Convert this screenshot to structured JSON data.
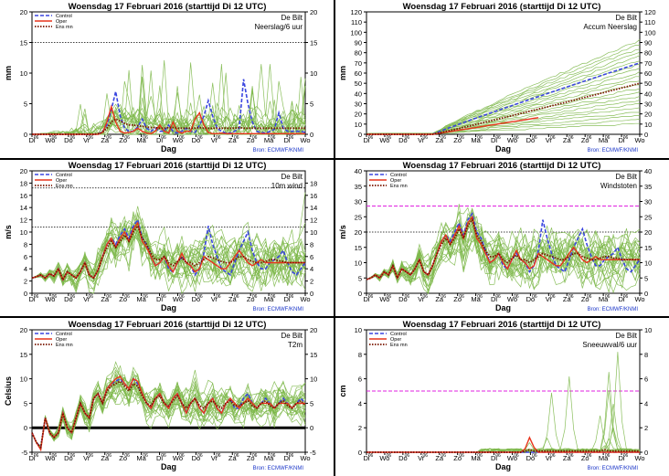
{
  "header": {
    "title": "Woensdag  17 Februari  2016  (starttijd  Di 12 UTC)",
    "location": "De Bilt",
    "source": "Bron: ECMWF/KNMI",
    "xlabel": "Dag"
  },
  "legend": [
    "Control",
    "Oper",
    "Ens mn"
  ],
  "colors": {
    "control": "#3b46e0",
    "oper": "#e8341c",
    "ensmean": "#7a1400",
    "members": "#7db84a",
    "threshold_dotted": "#000000",
    "threshold_magenta": "#e020e0",
    "source_text": "#1a35c8"
  },
  "days": [
    "Di",
    "Wo",
    "Do",
    "Vr",
    "Za",
    "Zo",
    "Ma",
    "Di",
    "Wo",
    "Do",
    "Vr",
    "Za",
    "Zo",
    "Ma",
    "Di",
    "Wo"
  ],
  "hour_mark": "06",
  "chart_data": [
    {
      "id": "neerslag",
      "type": "line",
      "subtitle": "Neerslag/6 uur",
      "ylabel": "mm",
      "ylim": [
        0,
        20
      ],
      "yticks": [
        0,
        5,
        10,
        15,
        20
      ],
      "show_legend": true,
      "thresholds": [
        {
          "y": 15,
          "style": "dotted"
        }
      ],
      "control": [
        0,
        0,
        0,
        0,
        0,
        0,
        0,
        0,
        0,
        0,
        0,
        0,
        0,
        0,
        0,
        0,
        0.5,
        1.5,
        4,
        7,
        3,
        1,
        0.5,
        0.5,
        1.2,
        2.5,
        1,
        0.5,
        1,
        0.5,
        0.5,
        1.5,
        0.5,
        0.2,
        0.5,
        1,
        0.5,
        0.3,
        1.5,
        3,
        5.5,
        3,
        1,
        0.5,
        0.2,
        0.2,
        0.5,
        1,
        9,
        5,
        2,
        0.5,
        0.3,
        0.2,
        0.5,
        0.8,
        3.5,
        1,
        0.5,
        0.5,
        0.5,
        0.5,
        0.3
      ],
      "oper": [
        0,
        0,
        0,
        0,
        0,
        0,
        0,
        0,
        0,
        0,
        0,
        0,
        0,
        0,
        0,
        0,
        0.3,
        2,
        4.5,
        2,
        0.5,
        0.2,
        0.3,
        0.5,
        1,
        0.5,
        0.2,
        0.1,
        0.5,
        1.5,
        0.5,
        0.2,
        2,
        0.5,
        0.2,
        0.5,
        0.5,
        2.5,
        3.5,
        1.5,
        0.3,
        0.1,
        0.1,
        0.2,
        0.1,
        0.1,
        0.1,
        0.1,
        0.1,
        0.1,
        0.1,
        0.1,
        0.1,
        0.1,
        0.1,
        0.1,
        0.1,
        0.1,
        0.1,
        0.1,
        0.1,
        0.1,
        0.1
      ],
      "ensmean": [
        0,
        0,
        0,
        0,
        0,
        0,
        0,
        0,
        0,
        0,
        0,
        0,
        0,
        0,
        0,
        0.1,
        0.3,
        1,
        2,
        2.5,
        2.2,
        1.8,
        1.5,
        1.5,
        1.4,
        1.3,
        1.2,
        1.1,
        1.1,
        1,
        1,
        1.1,
        1.1,
        1,
        1,
        1,
        1,
        1,
        1.1,
        1,
        1,
        1,
        1,
        1,
        1,
        1,
        1,
        1.1,
        1,
        1,
        1,
        1,
        1,
        1,
        1,
        1,
        1,
        1,
        1,
        1,
        1,
        1,
        1
      ],
      "members_source": {
        "mean": "ensmean",
        "mode": "noise",
        "spread": 2.2,
        "min": 0,
        "amp_min": 0,
        "amp_max": 12,
        "count": 18
      }
    },
    {
      "id": "accum",
      "type": "line",
      "subtitle": "Accum Neerslag",
      "ylabel": "mm",
      "ylim": [
        0,
        120
      ],
      "yticks": [
        0,
        10,
        20,
        30,
        40,
        50,
        60,
        70,
        80,
        90,
        100,
        110,
        120
      ],
      "show_legend": false,
      "thresholds": [],
      "control_end": 70,
      "oper_end": 32,
      "ensmean_end": 50,
      "members_source": {
        "mode": "accum",
        "min_end": 10,
        "max_end": 92,
        "count": 22
      }
    },
    {
      "id": "wind",
      "type": "line",
      "subtitle": "10m wind",
      "ylabel": "m/s",
      "ylim": [
        0,
        20
      ],
      "yticks_left": [
        0,
        2,
        4,
        6,
        8,
        10,
        12,
        14,
        16,
        18,
        20
      ],
      "yticks_right": [
        0,
        2,
        4,
        6,
        8,
        10,
        12,
        14,
        16,
        18
      ],
      "show_legend": true,
      "thresholds": [
        {
          "y": 10.8,
          "style": "dotted"
        },
        {
          "y": 17.2,
          "style": "dotted"
        }
      ],
      "control": [
        2.5,
        2.7,
        3,
        2.5,
        3.2,
        2.8,
        4,
        2.2,
        3.5,
        3,
        2.5,
        3.5,
        5,
        3,
        2.5,
        3.8,
        6,
        8,
        9,
        8,
        9.5,
        10.5,
        9,
        11,
        12,
        9,
        8,
        6,
        4.5,
        5,
        6,
        4,
        3.5,
        5,
        6,
        5,
        4.5,
        3,
        4,
        6.5,
        11,
        8,
        6,
        4,
        3.5,
        3,
        5,
        7,
        8.5,
        10,
        7,
        5,
        4,
        4,
        5,
        5.5,
        6,
        7,
        5,
        3.5,
        3,
        4,
        5
      ],
      "oper": [
        2.5,
        2.7,
        3,
        2.5,
        3.2,
        2.8,
        4,
        2.2,
        3.5,
        3,
        2.5,
        3.5,
        5,
        3,
        2.5,
        3.8,
        6,
        8,
        9,
        7.5,
        9,
        10,
        8.5,
        10.5,
        11.5,
        8.5,
        7.5,
        6,
        4.5,
        5,
        6,
        4.5,
        3.5,
        5,
        6.5,
        5,
        4.5,
        3.5,
        4,
        6,
        5.5,
        5,
        4.5,
        4,
        4,
        5,
        6,
        7,
        6,
        5,
        4.5,
        5,
        5.5,
        5,
        5,
        5,
        5,
        5,
        5,
        5,
        5,
        5,
        5
      ],
      "ensmean": [
        2.5,
        2.7,
        3,
        2.5,
        3.2,
        2.8,
        4,
        2.2,
        3.5,
        3,
        2.5,
        3.5,
        5,
        3,
        2.5,
        3.8,
        6,
        7.5,
        8.5,
        7.5,
        8.5,
        9.5,
        8.5,
        10,
        11,
        9,
        8,
        6.5,
        5.5,
        5.5,
        6,
        5,
        4.5,
        5.2,
        5.8,
        5,
        5,
        4.5,
        5,
        5.5,
        6,
        5.8,
        5.5,
        5.2,
        5,
        5,
        5.5,
        6,
        6,
        5.5,
        5.2,
        5,
        5,
        5.2,
        5.5,
        5.5,
        5.3,
        5.2,
        5,
        5,
        5,
        5,
        5
      ],
      "members_source": {
        "mean": "ensmean",
        "mode": "noise",
        "spread": 3.2,
        "min": 0,
        "count": 22,
        "tail_max": 16.5
      }
    },
    {
      "id": "windstoten",
      "type": "line",
      "subtitle": "Windstoten",
      "ylabel": "m/s",
      "ylim": [
        0,
        40
      ],
      "yticks": [
        0,
        5,
        10,
        15,
        20,
        25,
        30,
        35,
        40
      ],
      "show_legend": true,
      "thresholds": [
        {
          "y": 20,
          "style": "dotted"
        },
        {
          "y": 28.5,
          "style": "magenta"
        }
      ],
      "control": [
        4.5,
        5,
        6,
        5,
        7,
        6,
        9,
        5,
        8,
        7,
        6,
        8,
        11,
        7,
        6,
        9,
        13,
        17,
        19,
        17,
        20,
        23,
        19,
        24,
        26,
        20,
        18,
        14,
        10,
        11,
        13,
        9,
        8,
        11,
        13,
        11,
        10,
        7,
        9,
        14,
        24,
        18,
        13,
        9,
        8,
        7,
        11,
        15,
        18,
        21,
        16,
        12,
        9,
        9,
        11,
        12,
        13,
        15,
        11,
        8,
        7,
        9,
        11
      ],
      "oper": [
        4.5,
        5,
        6,
        5,
        7,
        6,
        9,
        5,
        8,
        7,
        6,
        8,
        11,
        7,
        6,
        9,
        13,
        17,
        19,
        16,
        19,
        22,
        18,
        23,
        25,
        18,
        16,
        13,
        10,
        11,
        13,
        10,
        8,
        11,
        14,
        11,
        10,
        8,
        9,
        13,
        12,
        11,
        10,
        9,
        9,
        11,
        13,
        15,
        13,
        11,
        10,
        11,
        12,
        11,
        11,
        11,
        11,
        11,
        11,
        11,
        11,
        11,
        11
      ],
      "ensmean": [
        4.5,
        5,
        6,
        5,
        7,
        6,
        9,
        5,
        8,
        7,
        6,
        8,
        11,
        7,
        6,
        9,
        13,
        16,
        18,
        16,
        18,
        21,
        18,
        22,
        24,
        19,
        17,
        14,
        12,
        12,
        13,
        11,
        10,
        11.5,
        12.5,
        11,
        11,
        10,
        11,
        12,
        13,
        12.5,
        12,
        11.5,
        11,
        11,
        12,
        13,
        13,
        12,
        11.5,
        11,
        11,
        11.5,
        12,
        12,
        11.5,
        11.5,
        11,
        11,
        11,
        11,
        11
      ],
      "members_source": {
        "mean": "ensmean",
        "mode": "noise",
        "spread": 6.5,
        "min": 0,
        "count": 22
      }
    },
    {
      "id": "t2m",
      "type": "line",
      "subtitle": "T2m",
      "ylabel": "Celsius",
      "ylim": [
        -5,
        20
      ],
      "yticks_left": [
        -5,
        0,
        5,
        10,
        15,
        20
      ],
      "yticks_right": [
        -5,
        0,
        5,
        10,
        15,
        20
      ],
      "show_legend": true,
      "thresholds": [
        {
          "y": 0,
          "style": "solid-bold"
        }
      ],
      "control": [
        -1,
        -3,
        -4,
        2,
        -1,
        -2,
        -1,
        3,
        0,
        -1,
        2,
        5,
        3,
        2,
        6,
        7,
        5,
        8,
        9,
        9.5,
        10,
        9,
        8,
        10,
        9,
        7,
        5,
        4,
        6,
        7,
        5,
        4,
        6,
        7,
        5,
        3,
        5,
        6,
        4,
        3,
        5,
        6,
        4,
        3,
        5,
        6,
        4,
        4,
        6,
        7,
        5,
        4,
        5,
        6,
        5,
        4,
        5,
        6,
        5,
        4,
        5,
        6,
        5
      ],
      "oper": [
        -1,
        -3,
        -4.5,
        2,
        -1,
        -2,
        -1,
        3,
        0,
        -1,
        2,
        5,
        3,
        2,
        6,
        7,
        5,
        8,
        9,
        10,
        10.5,
        9,
        8,
        10,
        9.5,
        7,
        5,
        4,
        6,
        7,
        5,
        4,
        6,
        7,
        5,
        3,
        5,
        6,
        4,
        3,
        5,
        6,
        4,
        3,
        5,
        6,
        5,
        4,
        5,
        6,
        5,
        4,
        5,
        5,
        5,
        4,
        5,
        5,
        5,
        4,
        5,
        5,
        5
      ],
      "ensmean": [
        -1,
        -3,
        -4,
        2,
        -1,
        -2,
        -1,
        3,
        0,
        -1,
        2,
        5,
        3,
        2,
        6,
        7,
        5,
        7.5,
        8.5,
        9,
        9.5,
        8.5,
        7.5,
        9,
        8.5,
        6.5,
        5,
        4.5,
        6,
        6.5,
        5,
        4.5,
        5.5,
        6.5,
        5,
        4,
        5,
        6,
        4.5,
        4,
        5,
        5.5,
        4.5,
        4,
        5,
        5.5,
        4.5,
        4.5,
        5,
        5.5,
        4.5,
        4,
        5,
        5.5,
        4.5,
        4,
        5,
        5.5,
        4.5,
        4,
        5,
        5.5,
        4.5
      ],
      "members_source": {
        "mean": "ensmean",
        "mode": "noise",
        "spread": 3,
        "count": 22
      }
    },
    {
      "id": "sneeuw",
      "type": "line",
      "subtitle": "Sneeuwval/6 uur",
      "ylabel": "cm",
      "ylim": [
        0,
        10
      ],
      "yticks": [
        0,
        2,
        4,
        6,
        8,
        10
      ],
      "show_legend": true,
      "thresholds": [
        {
          "y": 5,
          "style": "magenta"
        }
      ],
      "control": [
        0,
        0,
        0,
        0,
        0,
        0,
        0,
        0,
        0,
        0,
        0,
        0,
        0,
        0,
        0,
        0,
        0,
        0,
        0,
        0,
        0,
        0,
        0,
        0,
        0,
        0,
        0,
        0,
        0,
        0,
        0,
        0,
        0,
        0,
        0,
        0,
        0,
        0,
        0,
        0,
        0,
        0,
        0,
        0,
        0,
        0,
        0,
        0,
        0,
        0,
        0,
        0,
        0,
        0,
        0,
        0,
        0,
        0,
        0,
        0,
        0,
        0,
        0
      ],
      "oper": [
        0,
        0,
        0,
        0,
        0,
        0,
        0,
        0,
        0,
        0,
        0,
        0,
        0,
        0,
        0,
        0,
        0,
        0,
        0,
        0,
        0,
        0,
        0,
        0,
        0,
        0,
        0,
        0,
        0,
        0,
        0,
        0,
        0,
        0,
        0,
        0,
        0.3,
        1.2,
        0.4,
        0,
        0,
        0,
        0,
        0,
        0,
        0,
        0,
        0,
        0,
        0,
        0,
        0,
        0,
        0,
        0,
        0,
        0,
        0,
        0,
        0,
        0,
        0,
        0
      ],
      "ensmean": [
        0,
        0,
        0,
        0,
        0,
        0,
        0,
        0,
        0,
        0,
        0,
        0,
        0,
        0,
        0,
        0,
        0,
        0,
        0,
        0,
        0,
        0,
        0,
        0,
        0,
        0,
        0,
        0,
        0,
        0,
        0,
        0,
        0,
        0,
        0,
        0,
        0.1,
        0.2,
        0.1,
        0.1,
        0.1,
        0.1,
        0.1,
        0.1,
        0.1,
        0.1,
        0.1,
        0.1,
        0.1,
        0.1,
        0.1,
        0.1,
        0.1,
        0.1,
        0.2,
        0.1,
        0.1,
        0.1,
        0.1,
        0.1,
        0.1,
        0.1,
        0.1
      ],
      "members_source": {
        "mode": "spikes",
        "count": 12,
        "peak_max": 8.2,
        "start_frac": 0.5
      }
    }
  ]
}
